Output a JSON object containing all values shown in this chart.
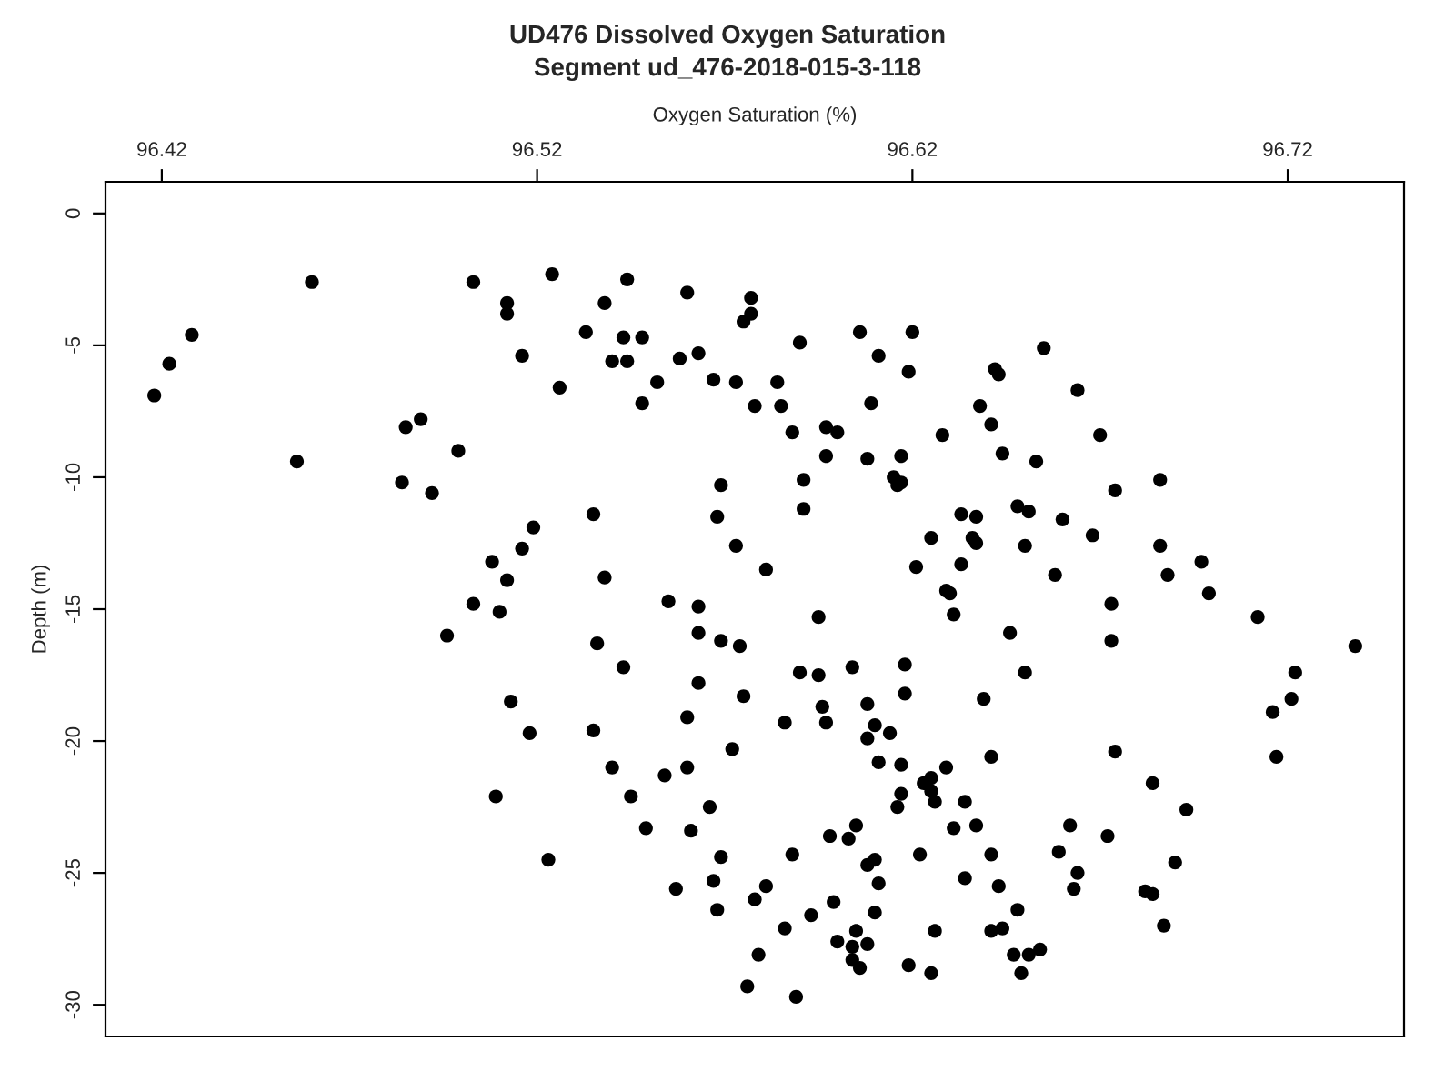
{
  "chart_data": {
    "type": "scatter",
    "title": "UD476 Dissolved Oxygen Saturation",
    "subtitle": "Segment ud_476-2018-015-3-118",
    "xlabel": "Oxygen Saturation (%)",
    "ylabel": "Depth (m)",
    "xlim": [
      96.405,
      96.751
    ],
    "ylim": [
      -31.2,
      1.2
    ],
    "xticks": [
      96.42,
      96.52,
      96.62,
      96.72
    ],
    "yticks": [
      0,
      -5,
      -10,
      -15,
      -20,
      -25,
      -30
    ],
    "grid": false,
    "marker": "circle",
    "series": [
      {
        "color": "#000000",
        "x": [
          96.46,
          96.503,
          96.512,
          96.512,
          96.428,
          96.516,
          96.422,
          96.418,
          96.489,
          96.485,
          96.499,
          96.456,
          96.484,
          96.492,
          96.519,
          96.516,
          96.508,
          96.512,
          96.503,
          96.51,
          96.524,
          96.544,
          96.56,
          96.577,
          96.538,
          96.577,
          96.575,
          96.533,
          96.543,
          96.548,
          96.606,
          96.62,
          96.59,
          96.563,
          96.611,
          96.54,
          96.544,
          96.558,
          96.526,
          96.619,
          96.552,
          96.567,
          96.573,
          96.584,
          96.548,
          96.578,
          96.585,
          96.609,
          96.638,
          96.588,
          96.597,
          96.6,
          96.628,
          96.597,
          96.608,
          96.617,
          96.615,
          96.617,
          96.616,
          96.569,
          96.591,
          96.591,
          96.535,
          96.568,
          96.633,
          96.637,
          96.625,
          96.636,
          96.637,
          96.573,
          96.621,
          96.633,
          96.581,
          96.538,
          96.629,
          96.63,
          96.555,
          96.563,
          96.595,
          96.631,
          96.655,
          96.642,
          96.643,
          96.664,
          96.641,
          96.67,
          96.644,
          96.653,
          96.686,
          96.674,
          96.648,
          96.651,
          96.66,
          96.668,
          96.65,
          96.686,
          96.697,
          96.658,
          96.688,
          96.699,
          96.673,
          96.536,
          96.563,
          96.569,
          96.574,
          96.543,
          96.59,
          96.595,
          96.604,
          96.618,
          96.563,
          96.575,
          96.618,
          96.608,
          96.596,
          96.56,
          96.586,
          96.597,
          96.61,
          96.614,
          96.608,
          96.535,
          96.572,
          96.54,
          96.554,
          96.56,
          96.611,
          96.617,
          96.629,
          96.623,
          96.625,
          96.625,
          96.626,
          96.617,
          96.616,
          96.634,
          96.566,
          96.545,
          96.549,
          96.561,
          96.598,
          96.603,
          96.605,
          96.631,
          96.637,
          96.523,
          96.569,
          96.588,
          96.622,
          96.608,
          96.61,
          96.634,
          96.567,
          96.581,
          96.557,
          96.611,
          96.578,
          96.568,
          96.599,
          96.593,
          96.61,
          96.586,
          96.605,
          96.626,
          96.6,
          96.604,
          96.608,
          96.579,
          96.604,
          96.606,
          96.619,
          96.625,
          96.576,
          96.589,
          96.496,
          96.513,
          96.518,
          96.509,
          96.712,
          96.646,
          96.673,
          96.738,
          96.65,
          96.722,
          96.639,
          96.721,
          96.716,
          96.641,
          96.674,
          96.717,
          96.684,
          96.693,
          96.662,
          96.641,
          96.659,
          96.672,
          96.664,
          96.69,
          96.643,
          96.663,
          96.682,
          96.684,
          96.648,
          96.687,
          96.641,
          96.644,
          96.647,
          96.651,
          96.654,
          96.649
        ],
        "values": [
          -2.6,
          -2.6,
          -3.4,
          -3.8,
          -4.6,
          -5.4,
          -5.7,
          -6.9,
          -7.8,
          -8.1,
          -9.0,
          -9.4,
          -10.2,
          -10.6,
          -11.9,
          -12.7,
          -13.2,
          -13.9,
          -14.8,
          -15.1,
          -2.3,
          -2.5,
          -3.0,
          -3.2,
          -3.4,
          -3.8,
          -4.1,
          -4.5,
          -4.7,
          -4.7,
          -4.5,
          -4.5,
          -4.9,
          -5.3,
          -5.4,
          -5.6,
          -5.6,
          -5.5,
          -6.6,
          -6.0,
          -6.4,
          -6.3,
          -6.4,
          -6.4,
          -7.2,
          -7.3,
          -7.3,
          -7.2,
          -7.3,
          -8.3,
          -8.1,
          -8.3,
          -8.4,
          -9.2,
          -9.3,
          -9.2,
          -10.0,
          -10.2,
          -10.3,
          -10.3,
          -10.1,
          -11.2,
          -11.4,
          -11.5,
          -11.4,
          -11.5,
          -12.3,
          -12.3,
          -12.5,
          -12.6,
          -13.4,
          -13.3,
          -13.5,
          -13.8,
          -14.3,
          -14.4,
          -14.7,
          -14.9,
          -15.3,
          -15.2,
          -5.1,
          -5.9,
          -6.1,
          -6.7,
          -8.0,
          -8.4,
          -9.1,
          -9.4,
          -10.1,
          -10.5,
          -11.1,
          -11.3,
          -11.6,
          -12.2,
          -12.6,
          -12.6,
          -13.2,
          -13.7,
          -13.7,
          -14.4,
          -14.8,
          -16.3,
          -15.9,
          -16.2,
          -16.4,
          -17.2,
          -17.4,
          -17.5,
          -17.2,
          -17.1,
          -17.8,
          -18.3,
          -18.2,
          -18.6,
          -18.7,
          -19.1,
          -19.3,
          -19.3,
          -19.4,
          -19.7,
          -19.9,
          -19.6,
          -20.3,
          -21.0,
          -21.3,
          -21.0,
          -20.8,
          -20.9,
          -21.0,
          -21.6,
          -21.4,
          -21.9,
          -22.3,
          -22.0,
          -22.5,
          -22.3,
          -22.5,
          -22.1,
          -23.3,
          -23.4,
          -23.6,
          -23.7,
          -23.2,
          -23.3,
          -23.2,
          -24.5,
          -24.4,
          -24.3,
          -24.3,
          -24.7,
          -24.5,
          -25.2,
          -25.3,
          -25.5,
          -25.6,
          -25.4,
          -26.0,
          -26.4,
          -26.1,
          -26.6,
          -26.5,
          -27.1,
          -27.2,
          -27.2,
          -27.6,
          -27.8,
          -27.7,
          -28.1,
          -28.3,
          -28.6,
          -28.5,
          -28.8,
          -29.3,
          -29.7,
          -16.0,
          -18.5,
          -19.7,
          -22.1,
          -15.3,
          -15.9,
          -16.2,
          -16.4,
          -17.4,
          -17.4,
          -18.4,
          -18.4,
          -18.9,
          -20.6,
          -20.4,
          -20.6,
          -21.6,
          -22.6,
          -23.2,
          -24.3,
          -24.2,
          -23.6,
          -25.0,
          -24.6,
          -25.5,
          -25.6,
          -25.7,
          -25.8,
          -26.4,
          -27.0,
          -27.2,
          -27.1,
          -28.1,
          -28.1,
          -27.9,
          -28.8
        ]
      }
    ]
  }
}
